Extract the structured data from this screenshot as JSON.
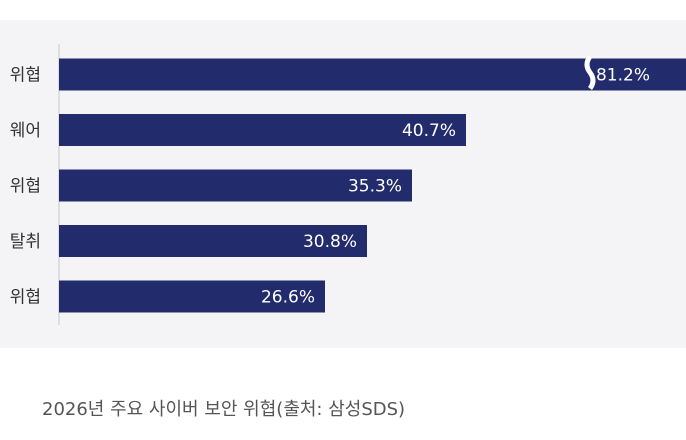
{
  "chart_data": {
    "type": "bar",
    "orientation": "horizontal",
    "categories": [
      "위협",
      "웨어",
      "위협",
      "탈취",
      "위협"
    ],
    "values": [
      81.2,
      40.7,
      35.3,
      30.8,
      26.6
    ],
    "value_labels": [
      "81.2%",
      "40.7%",
      "35.3%",
      "30.8%",
      "26.6%"
    ],
    "axis_break_on_first_bar": true,
    "xlim": [
      0,
      58
    ],
    "grid": false,
    "bar_color": "#222b6b"
  },
  "caption": "2026년 주요 사이버 보안 위협(출처: 삼성SDS)"
}
